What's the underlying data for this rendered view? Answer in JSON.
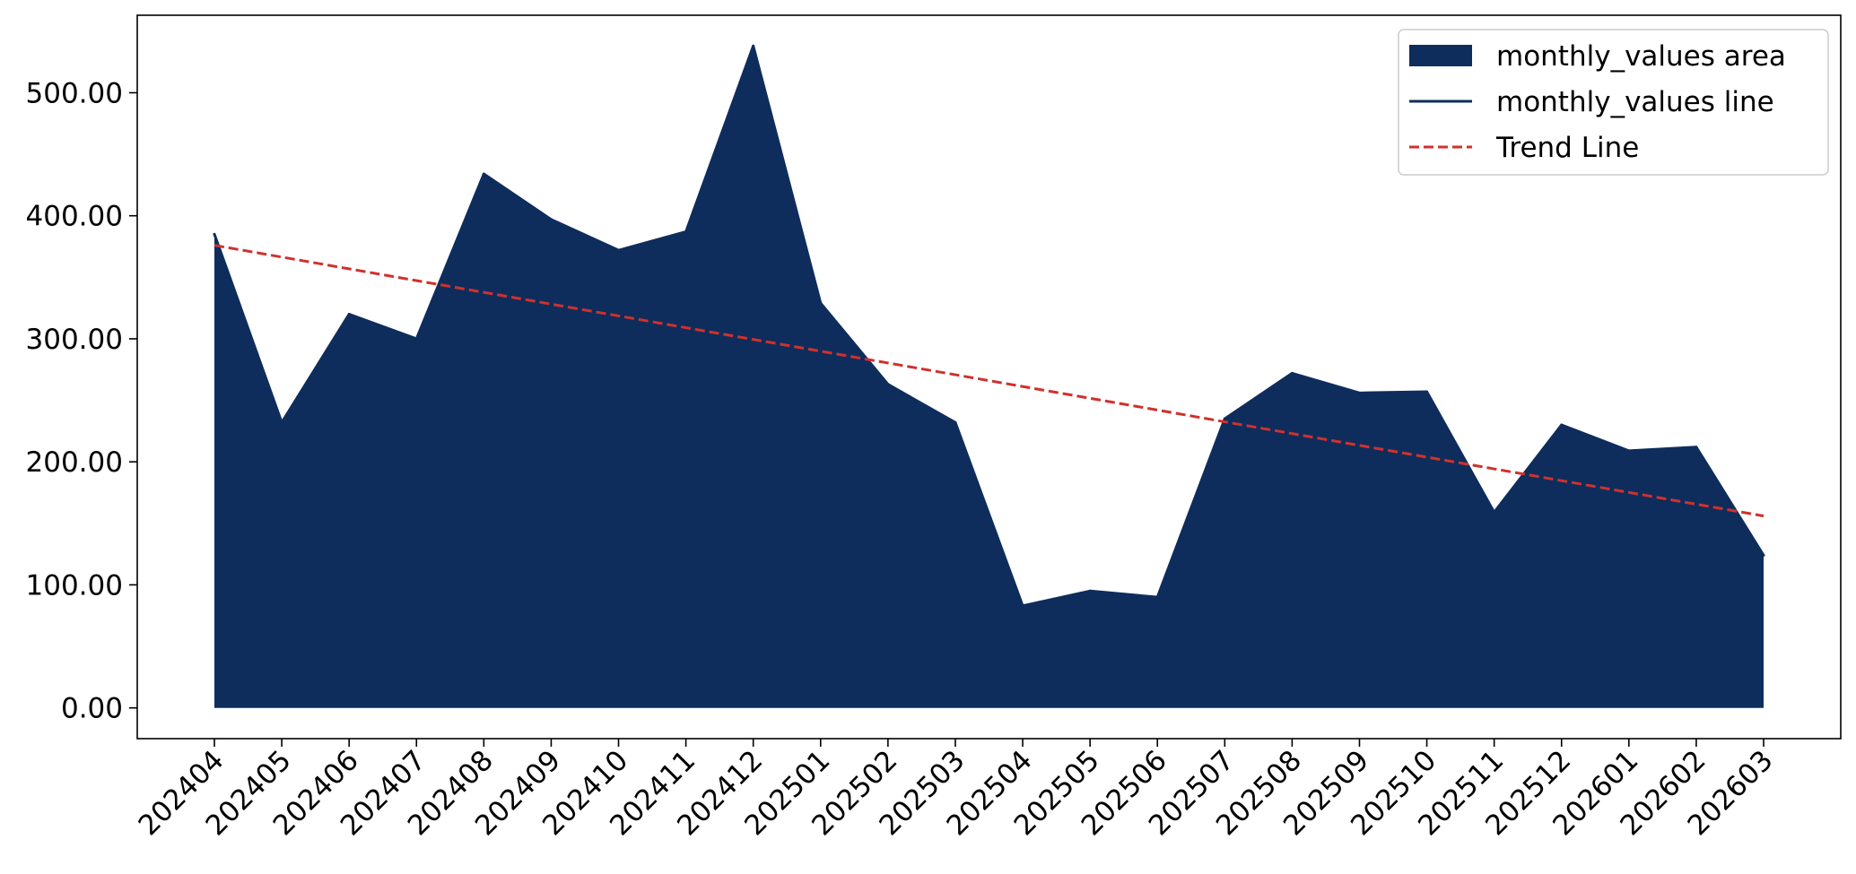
{
  "chart_data": {
    "type": "area",
    "title": "",
    "xlabel": "",
    "ylabel": "",
    "categories": [
      "202404",
      "202405",
      "202406",
      "202407",
      "202408",
      "202409",
      "202410",
      "202411",
      "202412",
      "202501",
      "202502",
      "202503",
      "202504",
      "202505",
      "202506",
      "202507",
      "202508",
      "202509",
      "202510",
      "202511",
      "202512",
      "202601",
      "202602",
      "202603"
    ],
    "series": [
      {
        "name": "monthly_values",
        "values": [
          385,
          232,
          320,
          300,
          434,
          397,
          372,
          387,
          538,
          329,
          263,
          232,
          83,
          95,
          90,
          235,
          272,
          256,
          257,
          159,
          230,
          209,
          212,
          124
        ]
      }
    ],
    "trend_line": {
      "start": 376,
      "end": 156
    },
    "ylim": [
      -25,
      563
    ],
    "yticks": [
      0,
      100,
      200,
      300,
      400,
      500
    ],
    "ytick_labels": [
      "0.00",
      "100.00",
      "200.00",
      "300.00",
      "400.00",
      "500.00"
    ],
    "grid": false,
    "legend": {
      "position": "top-right",
      "entries": [
        "monthly_values area",
        "monthly_values line",
        "Trend Line"
      ]
    },
    "colors": {
      "area": "#0e2d5c",
      "line": "#0e2d5c",
      "trend": "#d0312d"
    }
  }
}
